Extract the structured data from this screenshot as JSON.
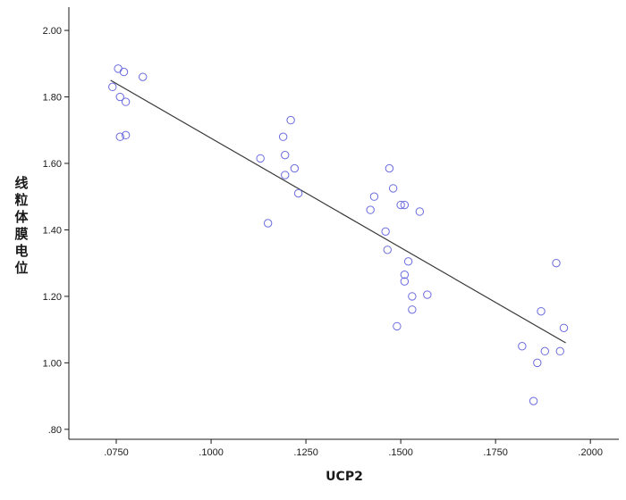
{
  "chart_data": {
    "type": "scatter",
    "title": "",
    "xlabel": "UCP2",
    "ylabel": "线粒体膜电位",
    "xlim": [
      0.0625,
      0.2075
    ],
    "ylim": [
      0.77,
      2.07
    ],
    "x_ticks": [
      {
        "value": 0.075,
        "label": ".0750"
      },
      {
        "value": 0.1,
        "label": ".1000"
      },
      {
        "value": 0.125,
        "label": ".1250"
      },
      {
        "value": 0.15,
        "label": ".1500"
      },
      {
        "value": 0.175,
        "label": ".1750"
      },
      {
        "value": 0.2,
        "label": ".2000"
      }
    ],
    "y_ticks": [
      {
        "value": 0.8,
        "label": ".80"
      },
      {
        "value": 1.0,
        "label": "1.00"
      },
      {
        "value": 1.2,
        "label": "1.20"
      },
      {
        "value": 1.4,
        "label": "1.40"
      },
      {
        "value": 1.6,
        "label": "1.60"
      },
      {
        "value": 1.8,
        "label": "1.80"
      },
      {
        "value": 2.0,
        "label": "2.00"
      }
    ],
    "grid": false,
    "marker_color": "#6b6bdf",
    "line_color": "#3a3a3a",
    "series": [
      {
        "points": [
          {
            "x": 0.0755,
            "y": 1.885
          },
          {
            "x": 0.077,
            "y": 1.875
          },
          {
            "x": 0.082,
            "y": 1.86
          },
          {
            "x": 0.074,
            "y": 1.83
          },
          {
            "x": 0.076,
            "y": 1.8
          },
          {
            "x": 0.0775,
            "y": 1.785
          },
          {
            "x": 0.076,
            "y": 1.68
          },
          {
            "x": 0.0775,
            "y": 1.685
          },
          {
            "x": 0.121,
            "y": 1.73
          },
          {
            "x": 0.119,
            "y": 1.68
          },
          {
            "x": 0.1195,
            "y": 1.625
          },
          {
            "x": 0.113,
            "y": 1.615
          },
          {
            "x": 0.122,
            "y": 1.585
          },
          {
            "x": 0.1195,
            "y": 1.565
          },
          {
            "x": 0.123,
            "y": 1.51
          },
          {
            "x": 0.115,
            "y": 1.42
          },
          {
            "x": 0.147,
            "y": 1.585
          },
          {
            "x": 0.148,
            "y": 1.525
          },
          {
            "x": 0.143,
            "y": 1.5
          },
          {
            "x": 0.15,
            "y": 1.475
          },
          {
            "x": 0.151,
            "y": 1.475
          },
          {
            "x": 0.142,
            "y": 1.46
          },
          {
            "x": 0.155,
            "y": 1.455
          },
          {
            "x": 0.146,
            "y": 1.395
          },
          {
            "x": 0.1465,
            "y": 1.34
          },
          {
            "x": 0.152,
            "y": 1.305
          },
          {
            "x": 0.151,
            "y": 1.265
          },
          {
            "x": 0.151,
            "y": 1.245
          },
          {
            "x": 0.157,
            "y": 1.205
          },
          {
            "x": 0.153,
            "y": 1.2
          },
          {
            "x": 0.153,
            "y": 1.16
          },
          {
            "x": 0.149,
            "y": 1.11
          },
          {
            "x": 0.191,
            "y": 1.3
          },
          {
            "x": 0.187,
            "y": 1.155
          },
          {
            "x": 0.193,
            "y": 1.105
          },
          {
            "x": 0.182,
            "y": 1.05
          },
          {
            "x": 0.188,
            "y": 1.035
          },
          {
            "x": 0.192,
            "y": 1.035
          },
          {
            "x": 0.186,
            "y": 1.0
          },
          {
            "x": 0.185,
            "y": 0.885
          }
        ]
      }
    ],
    "fit_line": {
      "x": [
        0.0735,
        0.1935
      ],
      "y": [
        1.85,
        1.06
      ]
    }
  }
}
